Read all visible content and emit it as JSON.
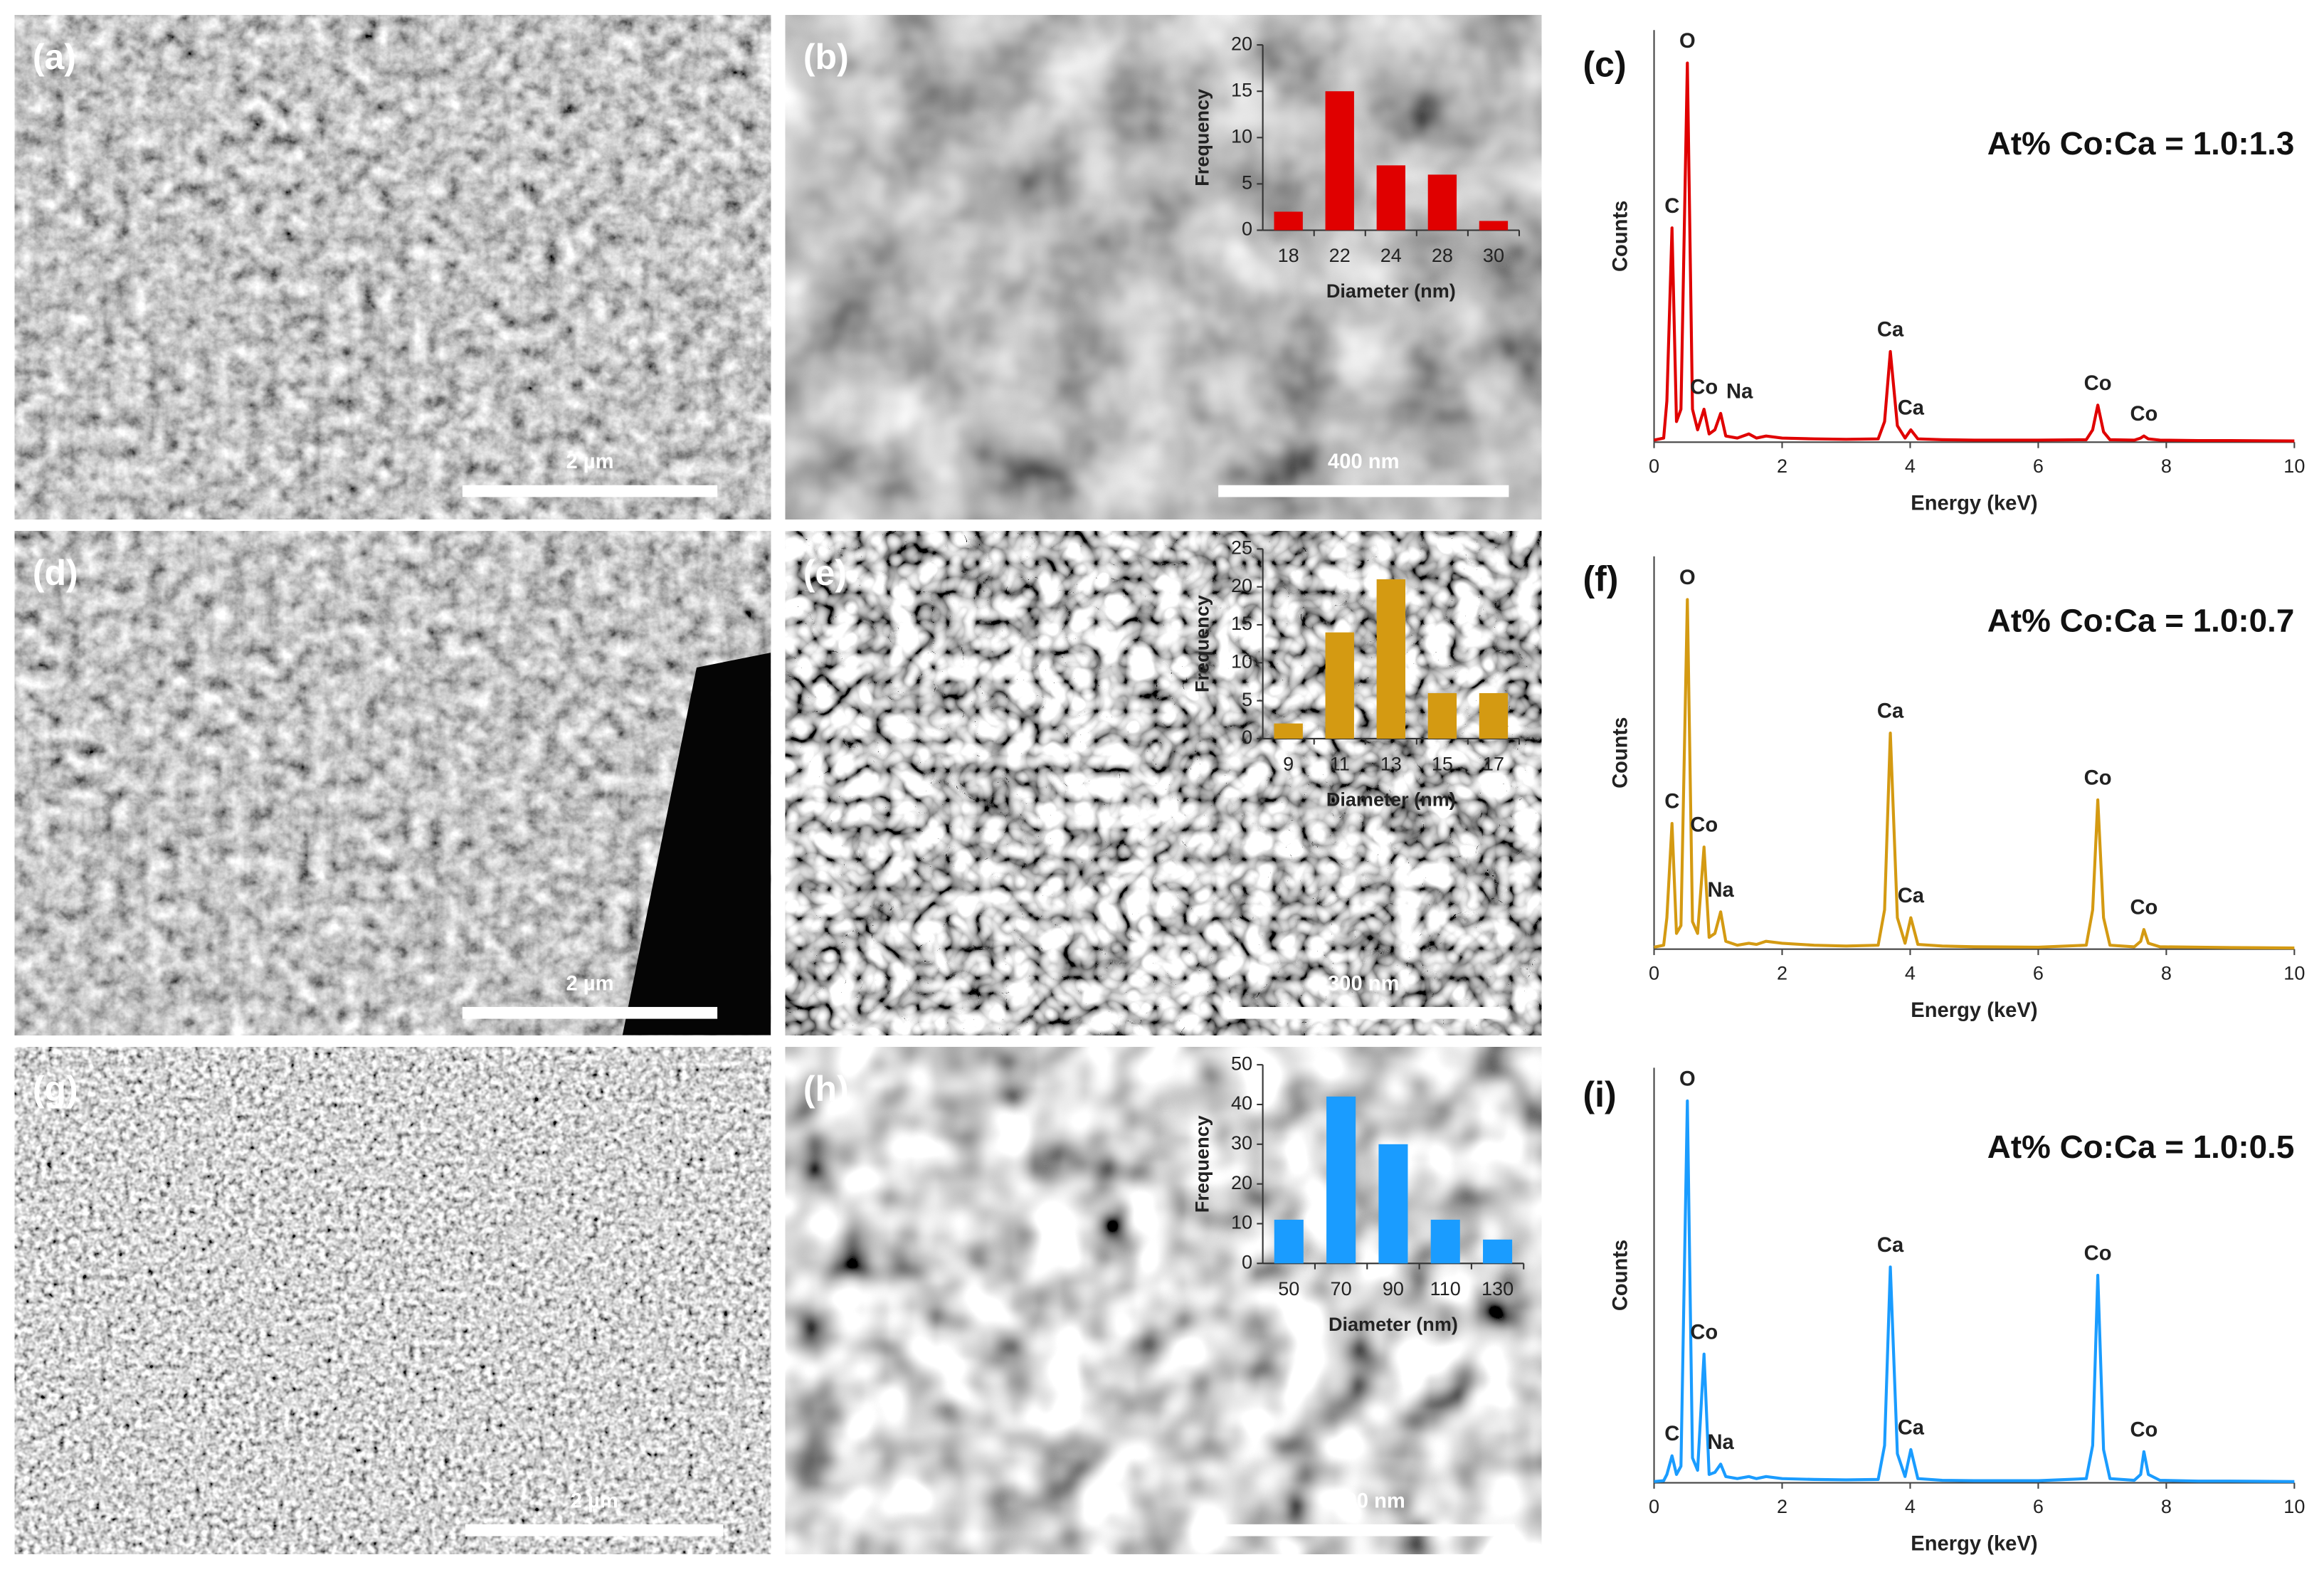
{
  "images": [
    {
      "label": "(a)",
      "scale_bar": "2 µm"
    },
    {
      "label": "(b)",
      "scale_bar": "400 nm"
    },
    {
      "label": "(d)",
      "scale_bar": "2 µm"
    },
    {
      "label": "(e)",
      "scale_bar": "300 nm"
    },
    {
      "label": "(g)",
      "scale_bar": "2 µm"
    },
    {
      "label": "(h)",
      "scale_bar": "400 nm"
    }
  ],
  "chart_data": [
    {
      "type": "bar",
      "categories": [
        "18",
        "22",
        "24",
        "28",
        "30"
      ],
      "values": [
        2,
        15,
        7,
        6,
        1
      ],
      "color": "#e00000",
      "ylim": [
        0,
        20
      ],
      "yticks": [
        0,
        5,
        10,
        15,
        20
      ],
      "xlabel": "Diameter (nm)",
      "ylabel": "Frequency"
    },
    {
      "type": "line",
      "panel_label": "(c)",
      "annotation": "At% Co:Ca = 1.0:1.3",
      "color": "#e00000",
      "xlabel": "Energy (keV)",
      "ylabel": "Counts",
      "xlim": [
        0,
        10
      ],
      "xticks": [
        0,
        2,
        4,
        6,
        8,
        10
      ],
      "ylim": [
        0,
        100
      ],
      "x": [
        0,
        0.15,
        0.2,
        0.28,
        0.35,
        0.42,
        0.52,
        0.6,
        0.68,
        0.78,
        0.86,
        0.95,
        1.04,
        1.12,
        1.3,
        1.48,
        1.6,
        1.75,
        2.0,
        2.5,
        3.0,
        3.5,
        3.6,
        3.69,
        3.8,
        3.92,
        4.01,
        4.12,
        4.5,
        5,
        6,
        6.75,
        6.85,
        6.93,
        7.02,
        7.12,
        7.5,
        7.6,
        7.65,
        7.72,
        7.9,
        8.5,
        9,
        10
      ],
      "values": [
        0.5,
        1,
        10,
        52,
        5,
        8,
        92,
        8,
        3,
        8,
        2,
        3,
        7,
        1.5,
        1,
        2,
        1,
        1.5,
        1,
        0.8,
        0.7,
        0.8,
        5,
        22,
        4,
        1,
        3,
        0.8,
        0.6,
        0.5,
        0.5,
        0.6,
        3,
        9,
        2.5,
        0.6,
        0.5,
        1,
        1.5,
        0.8,
        0.5,
        0.4,
        0.4,
        0.3
      ],
      "peak_labels": [
        {
          "text": "C",
          "x": 0.28
        },
        {
          "text": "O",
          "x": 0.52
        },
        {
          "text": "Co",
          "x": 0.78
        },
        {
          "text": "Na",
          "x": 1.04
        },
        {
          "text": "Ca",
          "x": 3.69
        },
        {
          "text": "Ca",
          "x": 4.01
        },
        {
          "text": "Co",
          "x": 6.93
        },
        {
          "text": "Co",
          "x": 7.65
        }
      ]
    },
    {
      "type": "bar",
      "categories": [
        "9",
        "11",
        "13",
        "15",
        "17"
      ],
      "values": [
        2,
        14,
        21,
        6,
        6
      ],
      "color": "#d49a12",
      "ylim": [
        0,
        25
      ],
      "yticks": [
        0,
        5,
        10,
        15,
        20,
        25
      ],
      "xlabel": "Diameter (nm)",
      "ylabel": "Frequency"
    },
    {
      "type": "line",
      "panel_label": "(f)",
      "annotation": "At% Co:Ca = 1.0:0.7",
      "color": "#d49a12",
      "xlabel": "Energy (keV)",
      "ylabel": "Counts",
      "xlim": [
        0,
        10
      ],
      "xticks": [
        0,
        2,
        4,
        6,
        8,
        10
      ],
      "ylim": [
        0,
        100
      ],
      "x": [
        0,
        0.15,
        0.2,
        0.28,
        0.35,
        0.42,
        0.52,
        0.6,
        0.68,
        0.78,
        0.86,
        0.95,
        1.04,
        1.12,
        1.3,
        1.48,
        1.6,
        1.75,
        2.0,
        2.5,
        3.0,
        3.5,
        3.6,
        3.69,
        3.8,
        3.92,
        4.01,
        4.12,
        4.5,
        5,
        6,
        6.75,
        6.85,
        6.93,
        7.02,
        7.12,
        7.5,
        7.6,
        7.65,
        7.72,
        7.9,
        8.5,
        9,
        10
      ],
      "values": [
        0.5,
        1,
        8,
        32,
        4,
        6,
        89,
        7,
        4,
        26,
        3,
        4,
        9.5,
        2,
        1,
        1.5,
        1.2,
        2,
        1.5,
        1,
        0.8,
        1,
        10,
        55,
        8,
        1.5,
        8,
        1.2,
        0.8,
        0.6,
        0.5,
        1,
        10,
        38,
        8,
        1,
        0.6,
        2,
        5,
        1.5,
        0.6,
        0.5,
        0.4,
        0.3
      ],
      "peak_labels": [
        {
          "text": "C",
          "x": 0.28
        },
        {
          "text": "O",
          "x": 0.52
        },
        {
          "text": "Co",
          "x": 0.78
        },
        {
          "text": "Na",
          "x": 1.04
        },
        {
          "text": "Ca",
          "x": 3.69
        },
        {
          "text": "Ca",
          "x": 4.01
        },
        {
          "text": "Co",
          "x": 6.93
        },
        {
          "text": "Co",
          "x": 7.65
        }
      ]
    },
    {
      "type": "bar",
      "categories": [
        "50",
        "70",
        "90",
        "110",
        "130"
      ],
      "values": [
        11,
        42,
        30,
        11,
        6
      ],
      "color": "#1a9cff",
      "ylim": [
        0,
        50
      ],
      "yticks": [
        0,
        10,
        20,
        30,
        40,
        50
      ],
      "xlabel": "Diameter (nm)",
      "ylabel": "Frequency"
    },
    {
      "type": "line",
      "panel_label": "(i)",
      "annotation": "At% Co:Ca = 1.0:0.5",
      "color": "#1a9cff",
      "xlabel": "Energy (keV)",
      "ylabel": "Counts",
      "xlim": [
        0,
        10
      ],
      "xticks": [
        0,
        2,
        4,
        6,
        8,
        10
      ],
      "ylim": [
        0,
        100
      ],
      "x": [
        0,
        0.15,
        0.2,
        0.28,
        0.35,
        0.42,
        0.52,
        0.6,
        0.68,
        0.78,
        0.86,
        0.95,
        1.04,
        1.12,
        1.3,
        1.48,
        1.6,
        1.75,
        2.0,
        2.5,
        3.0,
        3.5,
        3.6,
        3.69,
        3.8,
        3.92,
        4.01,
        4.12,
        4.5,
        5,
        6,
        6.75,
        6.85,
        6.93,
        7.02,
        7.12,
        7.5,
        7.6,
        7.65,
        7.72,
        7.9,
        8.5,
        9,
        10
      ],
      "values": [
        0.3,
        0.5,
        2,
        6.5,
        2,
        4,
        92,
        6,
        3,
        31,
        2,
        2.5,
        4.5,
        1.5,
        1,
        1.5,
        1,
        1.5,
        1,
        0.8,
        0.7,
        0.8,
        9,
        52,
        7,
        1.5,
        8,
        1,
        0.6,
        0.5,
        0.5,
        1,
        9,
        50,
        8,
        1,
        0.6,
        2,
        7.5,
        2,
        0.6,
        0.4,
        0.4,
        0.3
      ],
      "peak_labels": [
        {
          "text": "C",
          "x": 0.28
        },
        {
          "text": "O",
          "x": 0.52
        },
        {
          "text": "Co",
          "x": 0.78
        },
        {
          "text": "Na",
          "x": 1.04
        },
        {
          "text": "Ca",
          "x": 3.69
        },
        {
          "text": "Ca",
          "x": 4.01
        },
        {
          "text": "Co",
          "x": 6.93
        },
        {
          "text": "Co",
          "x": 7.65
        }
      ]
    }
  ]
}
